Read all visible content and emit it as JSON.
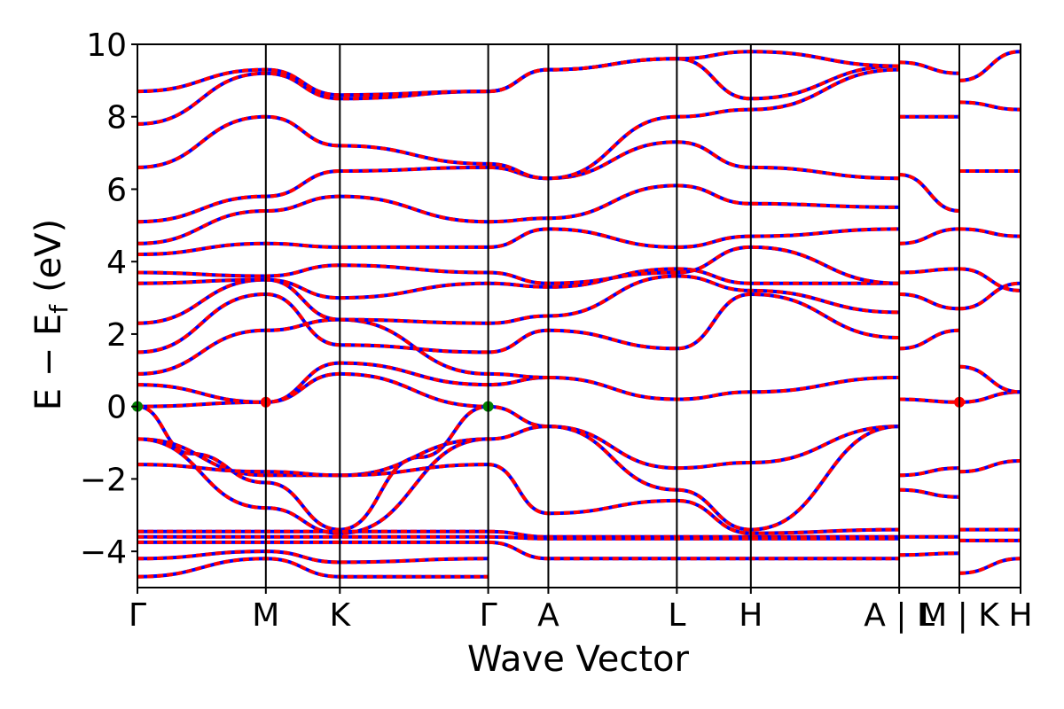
{
  "chart_data": {
    "type": "line",
    "xlabel": "Wave Vector",
    "ylabel_main": "E − E",
    "ylabel_sub": "f",
    "ylabel_unit": "(eV)",
    "ylim": [
      -5,
      10
    ],
    "xlim": [
      0,
      1
    ],
    "yticks": [
      -4,
      -2,
      0,
      2,
      4,
      6,
      8,
      10
    ],
    "ytick_labels": [
      "−4",
      "−2",
      "0",
      "2",
      "4",
      "6",
      "8",
      "10"
    ],
    "kpoints": [
      {
        "label": "Γ",
        "pos": 0.0
      },
      {
        "label": "M",
        "pos": 0.1454
      },
      {
        "label": "K",
        "pos": 0.2292
      },
      {
        "label": "Γ",
        "pos": 0.3972
      },
      {
        "label": "A",
        "pos": 0.4653
      },
      {
        "label": "L",
        "pos": 0.6108
      },
      {
        "label": "H",
        "pos": 0.6946
      },
      {
        "label": "A | L",
        "pos": 0.8626
      },
      {
        "label": "M | K",
        "pos": 0.9307
      },
      {
        "label": "H",
        "pos": 1.0
      }
    ],
    "series_colors": {
      "primary": "#ff0000",
      "secondary": "#0000ff"
    },
    "markers": [
      {
        "x": 0.0,
        "y": 0.0,
        "color": "#008000"
      },
      {
        "x": 0.3972,
        "y": 0.0,
        "color": "#008000"
      },
      {
        "x": 0.1454,
        "y": 0.12,
        "color": "#ff0000"
      },
      {
        "x": 0.9307,
        "y": 0.12,
        "color": "#ff0000"
      }
    ],
    "bands": [
      {
        "x": [
          0,
          0.1454,
          0.2292,
          0.3972,
          0.4653,
          0.6108,
          0.6946,
          0.8626
        ],
        "y": [
          0.0,
          0.12,
          0.9,
          0.0,
          -0.55,
          -1.7,
          -1.55,
          -0.55
        ]
      },
      {
        "x": [
          0,
          0.06,
          0.1454,
          0.2292,
          0.32,
          0.3972
        ],
        "y": [
          0.0,
          -1.3,
          -2.1,
          -3.4,
          -1.4,
          0.0
        ]
      },
      {
        "x": [
          0,
          0.1454,
          0.2292,
          0.3972
        ],
        "y": [
          -0.9,
          -2.8,
          -3.5,
          -0.9
        ]
      },
      {
        "x": [
          0,
          0.1454,
          0.2292,
          0.3972,
          0.4653,
          0.6108,
          0.6946,
          0.8626
        ],
        "y": [
          -0.9,
          -1.9,
          -1.9,
          -0.9,
          -0.55,
          -2.3,
          -3.4,
          -0.55
        ]
      },
      {
        "x": [
          0,
          0.1454,
          0.2292,
          0.3972,
          0.4653,
          0.6108,
          0.6946,
          0.8626
        ],
        "y": [
          -1.6,
          -1.8,
          -1.9,
          -1.6,
          -2.95,
          -2.6,
          -3.5,
          -3.4
        ]
      },
      {
        "x": [
          0,
          0.3972,
          0.4653,
          0.8626
        ],
        "y": [
          -3.45,
          -3.45,
          -3.6,
          -3.6
        ]
      },
      {
        "x": [
          0,
          0.3972,
          0.4653,
          0.8626
        ],
        "y": [
          -3.6,
          -3.6,
          -3.65,
          -3.65
        ]
      },
      {
        "x": [
          0,
          0.3972,
          0.4653,
          0.8626
        ],
        "y": [
          -3.75,
          -3.75,
          -4.2,
          -4.2
        ]
      },
      {
        "x": [
          0,
          0.1454,
          0.2292,
          0.3972
        ],
        "y": [
          -4.2,
          -4.0,
          -4.3,
          -4.2
        ]
      },
      {
        "x": [
          0,
          0.1454,
          0.2292,
          0.3972
        ],
        "y": [
          -4.7,
          -4.2,
          -4.7,
          -4.7
        ]
      },
      {
        "x": [
          0,
          0.1454,
          0.2292,
          0.3972,
          0.4653,
          0.6108,
          0.6946,
          0.8626
        ],
        "y": [
          0.6,
          0.12,
          1.2,
          0.6,
          0.8,
          0.2,
          0.4,
          0.8
        ]
      },
      {
        "x": [
          0,
          0.1454,
          0.2292,
          0.3972,
          0.4653
        ],
        "y": [
          0.9,
          2.1,
          2.4,
          0.9,
          0.8
        ]
      },
      {
        "x": [
          0,
          0.1454,
          0.2292,
          0.3972,
          0.4653,
          0.6108,
          0.6946,
          0.8626
        ],
        "y": [
          1.5,
          3.1,
          1.7,
          1.5,
          2.1,
          1.6,
          3.1,
          1.9
        ]
      },
      {
        "x": [
          0,
          0.1454,
          0.2292,
          0.3972,
          0.4653,
          0.6108,
          0.6946,
          0.8626
        ],
        "y": [
          2.3,
          3.5,
          2.4,
          2.3,
          2.5,
          3.6,
          3.2,
          2.6
        ]
      },
      {
        "x": [
          0,
          0.1454,
          0.2292,
          0.3972,
          0.4653,
          0.6108,
          0.6946,
          0.8626
        ],
        "y": [
          3.4,
          3.5,
          3.0,
          3.4,
          3.3,
          3.8,
          3.4,
          3.4
        ]
      },
      {
        "x": [
          0,
          0.1454,
          0.2292,
          0.3972,
          0.4653,
          0.6108,
          0.6946,
          0.8626
        ],
        "y": [
          3.7,
          3.6,
          3.9,
          3.7,
          3.4,
          3.7,
          4.4,
          3.4
        ]
      },
      {
        "x": [
          0,
          0.1454,
          0.2292,
          0.3972,
          0.4653,
          0.6108,
          0.6946,
          0.8626
        ],
        "y": [
          4.2,
          4.5,
          4.4,
          4.4,
          4.9,
          4.4,
          4.7,
          4.9
        ]
      },
      {
        "x": [
          0,
          0.1454,
          0.2292,
          0.3972,
          0.4653,
          0.6108,
          0.6946,
          0.8626
        ],
        "y": [
          4.5,
          5.4,
          5.8,
          5.1,
          5.2,
          6.1,
          5.6,
          5.5
        ]
      },
      {
        "x": [
          0,
          0.1454,
          0.2292,
          0.3972,
          0.4653,
          0.6108,
          0.6946,
          0.8626
        ],
        "y": [
          5.1,
          5.8,
          6.5,
          6.6,
          6.3,
          7.3,
          6.6,
          6.3
        ]
      },
      {
        "x": [
          0,
          0.1454,
          0.2292,
          0.3972,
          0.4653,
          0.6108,
          0.6946,
          0.8626
        ],
        "y": [
          6.6,
          8.0,
          7.2,
          6.7,
          6.3,
          8.0,
          8.2,
          9.3
        ]
      },
      {
        "x": [
          0,
          0.1454,
          0.2292,
          0.3972,
          0.4653,
          0.6108,
          0.6946,
          0.8626
        ],
        "y": [
          7.8,
          9.2,
          8.5,
          8.7,
          9.3,
          9.6,
          8.5,
          9.4
        ]
      },
      {
        "x": [
          0,
          0.1454,
          0.2292,
          0.3972,
          0.4653,
          0.6108,
          0.6946,
          0.8626
        ],
        "y": [
          8.7,
          9.3,
          8.6,
          8.7,
          9.3,
          9.6,
          9.8,
          9.4
        ]
      },
      {
        "x": [
          0.8626,
          0.9307
        ],
        "y": [
          0.2,
          0.12
        ]
      },
      {
        "x": [
          0.8626,
          0.9307
        ],
        "y": [
          -1.9,
          -1.7
        ]
      },
      {
        "x": [
          0.8626,
          0.9307
        ],
        "y": [
          -2.3,
          -2.5
        ]
      },
      {
        "x": [
          0.8626,
          0.9307
        ],
        "y": [
          -3.6,
          -3.6
        ]
      },
      {
        "x": [
          0.8626,
          0.9307
        ],
        "y": [
          -4.1,
          -4.05
        ]
      },
      {
        "x": [
          0.8626,
          0.9307
        ],
        "y": [
          1.6,
          2.1
        ]
      },
      {
        "x": [
          0.8626,
          0.9307
        ],
        "y": [
          3.1,
          2.7
        ]
      },
      {
        "x": [
          0.8626,
          0.9307
        ],
        "y": [
          3.7,
          3.8
        ]
      },
      {
        "x": [
          0.8626,
          0.9307
        ],
        "y": [
          4.5,
          4.9
        ]
      },
      {
        "x": [
          0.8626,
          0.9307
        ],
        "y": [
          6.4,
          5.4
        ]
      },
      {
        "x": [
          0.8626,
          0.9307
        ],
        "y": [
          8.0,
          8.0
        ]
      },
      {
        "x": [
          0.8626,
          0.9307
        ],
        "y": [
          9.5,
          9.2
        ]
      },
      {
        "x": [
          0.9307,
          1.0
        ],
        "y": [
          0.12,
          0.4
        ]
      },
      {
        "x": [
          0.9307,
          1.0
        ],
        "y": [
          -1.8,
          -1.5
        ]
      },
      {
        "x": [
          0.9307,
          1.0
        ],
        "y": [
          -3.4,
          -3.4
        ]
      },
      {
        "x": [
          0.9307,
          1.0
        ],
        "y": [
          -3.7,
          -3.7
        ]
      },
      {
        "x": [
          0.9307,
          1.0
        ],
        "y": [
          -4.6,
          -4.2
        ]
      },
      {
        "x": [
          0.9307,
          1.0
        ],
        "y": [
          1.1,
          0.4
        ]
      },
      {
        "x": [
          0.9307,
          1.0
        ],
        "y": [
          2.7,
          3.4
        ]
      },
      {
        "x": [
          0.9307,
          1.0
        ],
        "y": [
          3.8,
          3.2
        ]
      },
      {
        "x": [
          0.9307,
          1.0
        ],
        "y": [
          4.9,
          4.7
        ]
      },
      {
        "x": [
          0.9307,
          1.0
        ],
        "y": [
          6.5,
          6.5
        ]
      },
      {
        "x": [
          0.9307,
          1.0
        ],
        "y": [
          8.4,
          8.2
        ]
      },
      {
        "x": [
          0.9307,
          1.0
        ],
        "y": [
          9.0,
          9.8
        ]
      }
    ]
  }
}
